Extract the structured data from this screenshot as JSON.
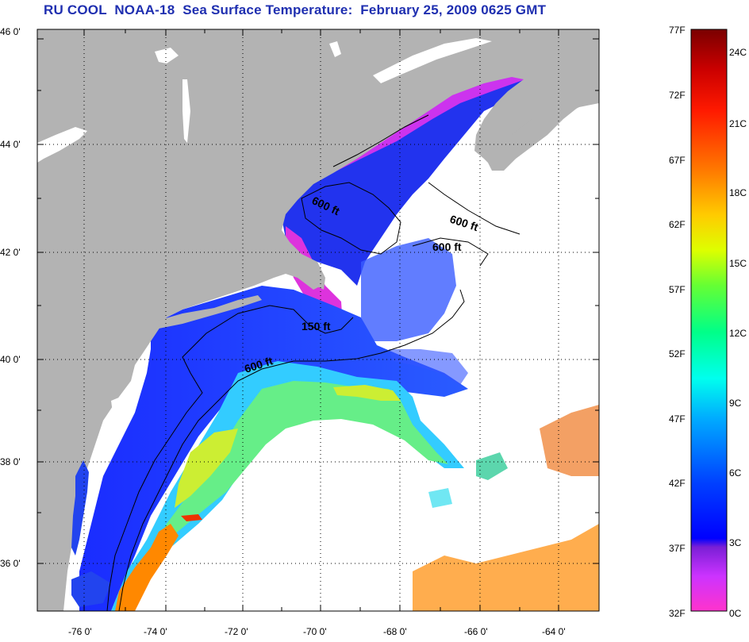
{
  "title": "RU COOL  NOAA-18  Sea Surface Temperature:  February 25, 2009 0625 GMT",
  "map": {
    "lat_ticks": [
      "46 0'",
      "44 0'",
      "42 0'",
      "40 0'",
      "38 0'",
      "36 0'"
    ],
    "lon_ticks": [
      "-76 0'",
      "-74 0'",
      "-72 0'",
      "-70 0'",
      "-68 0'",
      "-66 0'",
      "-64 0'"
    ],
    "contour_labels": [
      "600 ft",
      "600 ft",
      "600 ft",
      "150 ft",
      "600 ft"
    ],
    "land_color": "#b3b3b3",
    "ocean_no_data_color": "#ffffff",
    "grid": "dotted"
  },
  "colorbar": {
    "fahrenheit_labels": [
      "77F",
      "72F",
      "67F",
      "62F",
      "57F",
      "52F",
      "47F",
      "42F",
      "37F",
      "32F"
    ],
    "celsius_labels": [
      "24C",
      "21C",
      "18C",
      "15C",
      "12C",
      "9C",
      "6C",
      "3C",
      "0C"
    ],
    "colors_bottom_to_top": [
      "#ff33cc",
      "#cc33ff",
      "#7a1fd6",
      "#0000ff",
      "#0066ff",
      "#00ccff",
      "#00ffcc",
      "#66ff66",
      "#ccff00",
      "#ffff00",
      "#ff9900",
      "#ff3300",
      "#cc0000",
      "#800000"
    ]
  }
}
